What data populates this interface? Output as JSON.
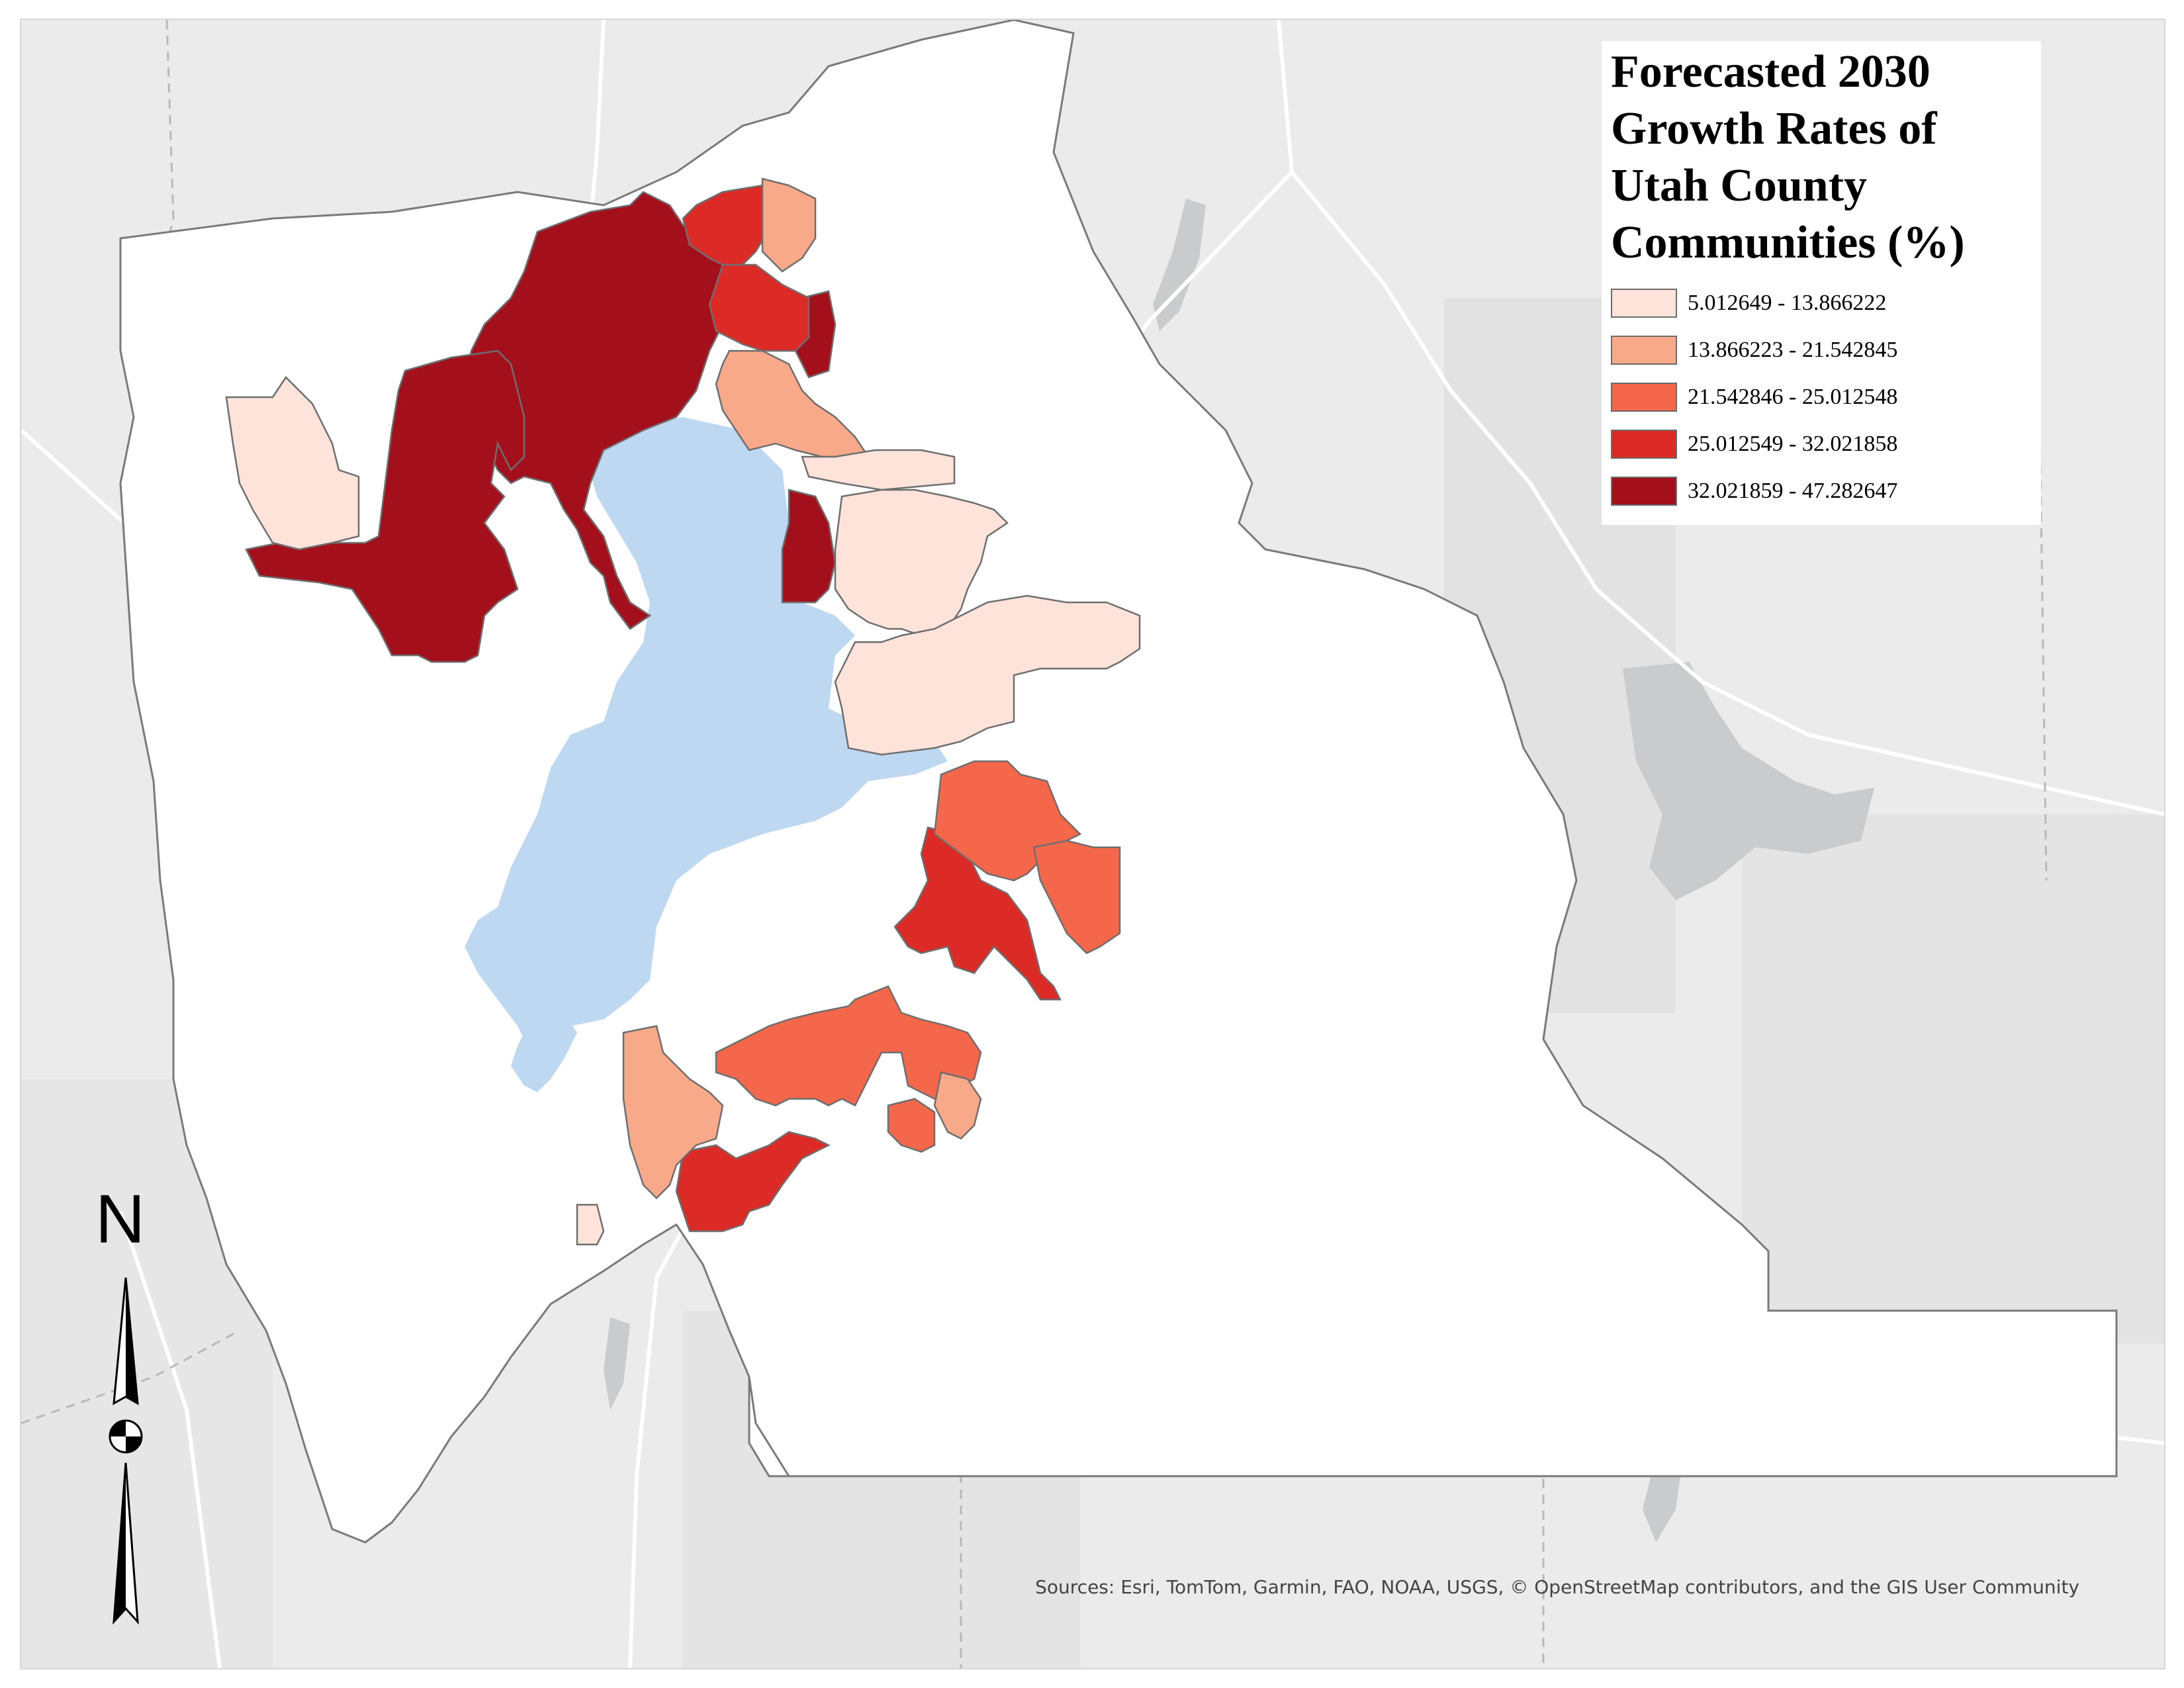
{
  "map": {
    "title": "Forecasted 2030 Growth Rates of Utah County Communities (%)",
    "legend": [
      {
        "label": "5.012649 - 13.866222",
        "color": "#fde3d9"
      },
      {
        "label": "13.866223 - 21.542845",
        "color": "#f8a98a"
      },
      {
        "label": "21.542846 - 25.012548",
        "color": "#f4674b"
      },
      {
        "label": "25.012549 - 32.021858",
        "color": "#dc2b26"
      },
      {
        "label": "32.021859 - 47.282647",
        "color": "#a3101b"
      }
    ],
    "water_color": "#bfd8f2",
    "basemap_color": "#ebebeb",
    "county_fill": "#ffffff",
    "north_label": "N",
    "sources": "Sources: Esri, TomTom, Garmin, FAO, NOAA, USGS, © OpenStreetMap contributors, and the GIS User Community"
  }
}
